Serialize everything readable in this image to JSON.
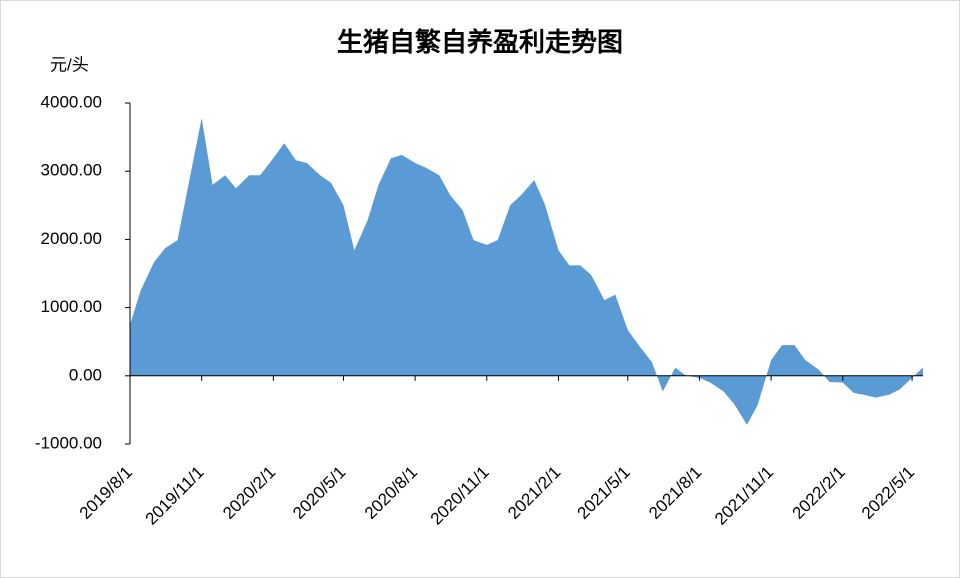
{
  "chart_data": {
    "type": "area",
    "title": "生猪自繁自养盈利走势图",
    "y_label": "元/头",
    "color": "#5b9bd5",
    "x": [
      "2019/8/1",
      "2019/8/15",
      "2019/9/1",
      "2019/9/15",
      "2019/10/1",
      "2019/10/15",
      "2019/11/1",
      "2019/11/15",
      "2019/12/1",
      "2019/12/15",
      "2020/1/1",
      "2020/1/15",
      "2020/2/1",
      "2020/2/15",
      "2020/3/1",
      "2020/3/15",
      "2020/4/1",
      "2020/4/15",
      "2020/5/1",
      "2020/5/15",
      "2020/6/1",
      "2020/6/15",
      "2020/7/1",
      "2020/7/15",
      "2020/8/1",
      "2020/8/15",
      "2020/9/1",
      "2020/9/15",
      "2020/10/1",
      "2020/10/15",
      "2020/11/1",
      "2020/11/15",
      "2020/12/1",
      "2020/12/15",
      "2021/1/1",
      "2021/1/15",
      "2021/2/1",
      "2021/2/15",
      "2021/3/1",
      "2021/3/15",
      "2021/4/1",
      "2021/4/15",
      "2021/5/1",
      "2021/5/15",
      "2021/6/1",
      "2021/6/15",
      "2021/7/1",
      "2021/7/15",
      "2021/8/1",
      "2021/8/15",
      "2021/9/1",
      "2021/9/15",
      "2021/10/1",
      "2021/10/15",
      "2021/11/1",
      "2021/11/15",
      "2021/12/1",
      "2021/12/15",
      "2022/1/1",
      "2022/1/15",
      "2022/2/1",
      "2022/2/15",
      "2022/3/1",
      "2022/3/15",
      "2022/4/1",
      "2022/4/15",
      "2022/5/1",
      "2022/5/15"
    ],
    "values": [
      750,
      1260,
      1670,
      1870,
      1990,
      2800,
      3780,
      2800,
      2940,
      2750,
      2940,
      2940,
      3190,
      3410,
      3160,
      3120,
      2940,
      2830,
      2500,
      1840,
      2280,
      2800,
      3190,
      3240,
      3120,
      3050,
      2940,
      2650,
      2430,
      1990,
      1920,
      1990,
      2500,
      2650,
      2870,
      2500,
      1840,
      1620,
      1620,
      1480,
      1110,
      1190,
      670,
      450,
      200,
      -230,
      120,
      0,
      -30,
      -100,
      -230,
      -420,
      -720,
      -420,
      230,
      450,
      450,
      230,
      90,
      -90,
      -100,
      -250,
      -280,
      -320,
      -280,
      -200,
      -30,
      120
    ],
    "xlim": [
      "2019/8/1",
      "2022/5/15"
    ],
    "xticks": [
      "2019/8/1",
      "2019/11/1",
      "2020/2/1",
      "2020/5/1",
      "2020/8/1",
      "2020/11/1",
      "2021/2/1",
      "2021/5/1",
      "2021/8/1",
      "2021/11/1",
      "2022/2/1",
      "2022/5/1"
    ],
    "ylim": [
      -1000,
      4000
    ],
    "yticks": [
      {
        "value": -1000,
        "label": "-1000.00"
      },
      {
        "value": 0,
        "label": "0.00"
      },
      {
        "value": 1000,
        "label": "1000.00"
      },
      {
        "value": 2000,
        "label": "2000.00"
      },
      {
        "value": 3000,
        "label": "3000.00"
      },
      {
        "value": 4000,
        "label": "4000.00"
      }
    ],
    "grid": false
  }
}
